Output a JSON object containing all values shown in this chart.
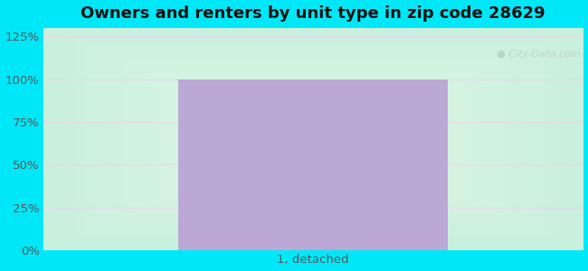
{
  "title": "Owners and renters by unit type in zip code 28629",
  "categories": [
    "1, detached"
  ],
  "values": [
    100
  ],
  "bar_color": "#bba8d4",
  "yticks": [
    0,
    25,
    50,
    75,
    100,
    125
  ],
  "ytick_labels": [
    "0%",
    "25%",
    "50%",
    "75%",
    "100%",
    "125%"
  ],
  "ylim": [
    0,
    130
  ],
  "title_fontsize": 13,
  "tick_fontsize": 9.5,
  "fig_bg_color": "#00e8f8",
  "plot_bg_color_center": "#edfaed",
  "plot_bg_color_edge": "#c8f5e8",
  "watermark_text": "City-Data.com",
  "watermark_color": "#b8ccc8",
  "bar_width": 0.5,
  "grid_color": "#e8d8e8",
  "tick_color": "#555555",
  "title_color": "#111111"
}
